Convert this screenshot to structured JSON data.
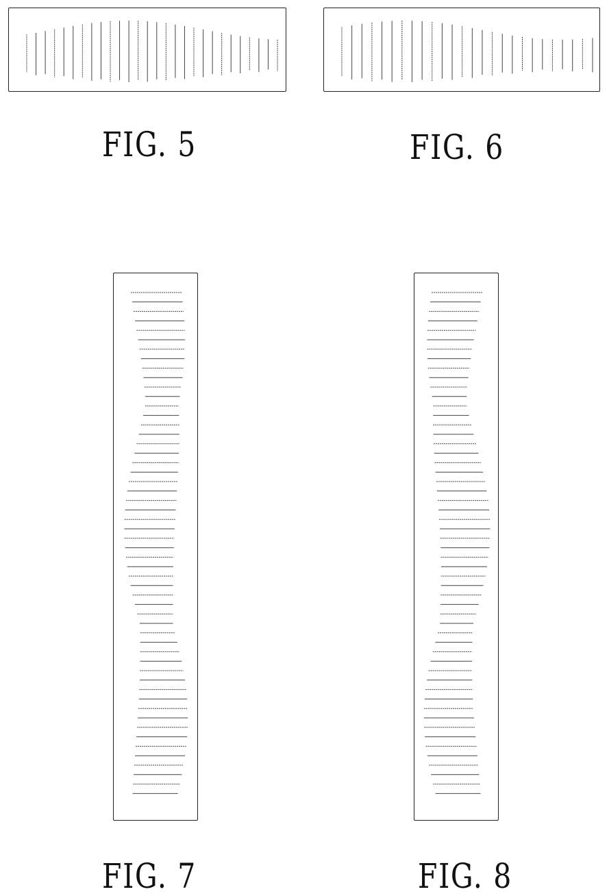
{
  "figures": [
    {
      "id": "fig5",
      "label": "FIG. 5"
    },
    {
      "id": "fig6",
      "label": "FIG. 6"
    },
    {
      "id": "fig7",
      "label": "FIG. 7"
    },
    {
      "id": "fig8",
      "label": "FIG. 8"
    }
  ]
}
